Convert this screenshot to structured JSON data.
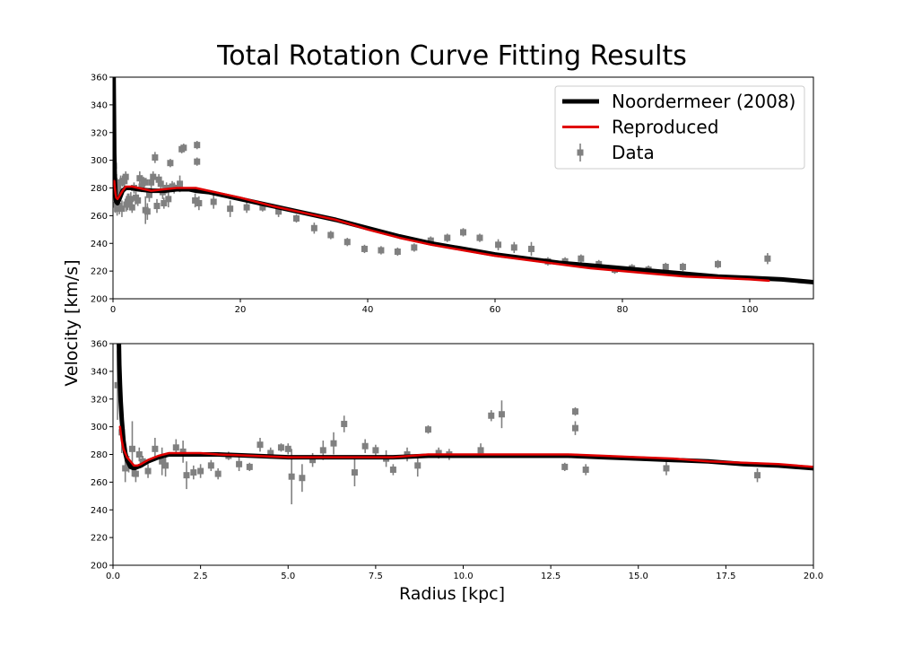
{
  "figure": {
    "title": "Total Rotation Curve Fitting Results",
    "xlabel": "Radius [kpc]",
    "ylabel": "Velocity [km/s]"
  },
  "legend": {
    "placement": "upper-right",
    "items": [
      {
        "label": "Noordermeer (2008)",
        "kind": "line",
        "color": "#000000"
      },
      {
        "label": "Reproduced",
        "kind": "line",
        "color": "#e00000"
      },
      {
        "label": "Data",
        "kind": "errorbar",
        "color": "#808080"
      }
    ]
  },
  "colors": {
    "noordermeer": "#000000",
    "reproduced": "#e00000",
    "data": "#808080"
  },
  "chart_data": [
    {
      "type": "line",
      "panel": "top",
      "xlim": [
        0,
        110
      ],
      "ylim": [
        200,
        360
      ],
      "xticks": [
        0,
        20,
        40,
        60,
        80,
        100
      ],
      "yticks": [
        200,
        220,
        240,
        260,
        280,
        300,
        320,
        340,
        360
      ],
      "xtick_labels": [
        "0",
        "20",
        "40",
        "60",
        "80",
        "100"
      ],
      "ytick_labels": [
        "200",
        "220",
        "240",
        "260",
        "280",
        "300",
        "320",
        "340",
        "360"
      ],
      "grid": false,
      "series": [
        {
          "name": "Noordermeer (2008)",
          "type": "line",
          "color": "#000000",
          "x": [
            0.05,
            0.1,
            0.15,
            0.2,
            0.3,
            0.4,
            0.5,
            0.7,
            1,
            1.5,
            2,
            3,
            4,
            6,
            8,
            10,
            12,
            13,
            15,
            20,
            25,
            30,
            35,
            40,
            45,
            50,
            55,
            60,
            65,
            70,
            75,
            80,
            85,
            90,
            95,
            100,
            105,
            110
          ],
          "y": [
            430,
            360,
            330,
            305,
            285,
            275,
            270,
            269,
            272,
            278,
            280,
            280,
            279,
            278,
            278,
            279,
            279,
            278,
            277,
            272,
            267,
            262,
            257,
            251,
            245,
            240,
            236,
            232,
            229,
            226,
            224,
            222,
            220,
            218,
            216,
            215,
            214,
            212
          ]
        },
        {
          "name": "Reproduced",
          "type": "line",
          "color": "#e00000",
          "x": [
            0.2,
            0.3,
            0.4,
            0.5,
            0.7,
            1,
            1.5,
            2,
            3,
            4,
            6,
            8,
            10,
            12,
            13,
            15,
            20,
            25,
            30,
            35,
            40,
            45,
            50,
            55,
            60,
            65,
            70,
            75,
            80,
            85,
            90,
            95,
            100,
            103
          ],
          "y": [
            285,
            280,
            276,
            273,
            272,
            274,
            278,
            281,
            281,
            280,
            278,
            279,
            280,
            280,
            280,
            278,
            273,
            267,
            262,
            257,
            250,
            244,
            239,
            235,
            231,
            228,
            225,
            222,
            220,
            218,
            216,
            215,
            214,
            213
          ]
        },
        {
          "name": "Data",
          "type": "scatter",
          "color": "#808080",
          "x": [
            0.13,
            0.25,
            0.35,
            0.45,
            0.55,
            0.65,
            0.75,
            0.85,
            1.0,
            1.2,
            1.4,
            1.5,
            1.8,
            2.0,
            2.1,
            2.3,
            2.5,
            2.8,
            3.0,
            3.3,
            3.6,
            3.9,
            4.2,
            4.5,
            4.8,
            5.0,
            5.1,
            5.4,
            5.7,
            6.0,
            6.3,
            6.6,
            6.9,
            7.2,
            7.5,
            7.8,
            8.0,
            8.4,
            8.7,
            9.0,
            9.3,
            9.6,
            10.5,
            10.8,
            11.1,
            12.9,
            13.2,
            13.2,
            13.5,
            15.8,
            18.4,
            21.0,
            23.5,
            26.0,
            28.8,
            31.6,
            34.2,
            36.8,
            39.5,
            42.1,
            44.7,
            47.3,
            49.9,
            52.5,
            55.0,
            57.6,
            60.5,
            63.0,
            65.7,
            68.3,
            71.0,
            73.5,
            76.3,
            78.8,
            81.5,
            84.1,
            86.8,
            89.5,
            95.0,
            102.8
          ],
          "y": [
            296,
            285,
            268,
            273,
            283,
            265,
            280,
            278,
            267,
            284,
            265,
            285,
            285,
            288,
            268,
            270,
            272,
            272,
            266,
            280,
            273,
            271,
            287,
            281,
            285,
            284,
            264,
            263,
            275,
            284,
            288,
            302,
            267,
            286,
            283,
            277,
            269,
            280,
            272,
            298,
            281,
            280,
            283,
            308,
            309,
            271,
            311,
            299,
            269,
            270,
            265,
            266,
            266,
            263,
            258,
            251,
            246,
            241,
            236,
            235,
            234,
            237,
            242,
            244,
            248,
            244,
            239,
            237,
            236,
            227,
            227,
            229,
            225,
            221,
            222,
            221,
            223,
            223,
            225,
            229
          ],
          "yerr": [
            4,
            5,
            6,
            5,
            7,
            5,
            6,
            4,
            6,
            5,
            6,
            4,
            5,
            4,
            5,
            6,
            4,
            5,
            4,
            4,
            5,
            4,
            5,
            4,
            3,
            3,
            10,
            6,
            5,
            5,
            4,
            4,
            5,
            4,
            4,
            5,
            4,
            4,
            6,
            3,
            4,
            4,
            6,
            3,
            3,
            5,
            3,
            3,
            5,
            5,
            6,
            4,
            3,
            4,
            3,
            4,
            3,
            3,
            3,
            3,
            3,
            3,
            3,
            3,
            3,
            3,
            4,
            4,
            5,
            3,
            3,
            3,
            3,
            3,
            3,
            3,
            3,
            3,
            3,
            4
          ]
        }
      ]
    },
    {
      "type": "line",
      "panel": "bottom",
      "xlim": [
        0,
        20
      ],
      "ylim": [
        200,
        360
      ],
      "xticks": [
        0,
        2.5,
        5,
        7.5,
        10,
        12.5,
        15,
        17.5,
        20
      ],
      "yticks": [
        200,
        220,
        240,
        260,
        280,
        300,
        320,
        340,
        360
      ],
      "xtick_labels": [
        "0.0",
        "2.5",
        "5.0",
        "7.5",
        "10.0",
        "12.5",
        "15.0",
        "17.5",
        "20.0"
      ],
      "ytick_labels": [
        "200",
        "220",
        "240",
        "260",
        "280",
        "300",
        "320",
        "340",
        "360"
      ],
      "grid": false,
      "series": [
        {
          "name": "Noordermeer (2008)",
          "type": "line",
          "color": "#000000",
          "x": [
            0.17,
            0.18,
            0.2,
            0.22,
            0.25,
            0.3,
            0.35,
            0.4,
            0.5,
            0.6,
            0.7,
            0.8,
            1.0,
            1.3,
            1.6,
            2.0,
            2.5,
            3.0,
            4.0,
            5.0,
            6.0,
            7.0,
            8.0,
            9.0,
            10.0,
            11.0,
            12.0,
            13.0,
            14.0,
            15.0,
            16.0,
            17.0,
            18.0,
            19.0,
            20.0
          ],
          "y": [
            360,
            345,
            330,
            318,
            305,
            290,
            281,
            276,
            271,
            270,
            271,
            272,
            275,
            278,
            280,
            280,
            280,
            280,
            279,
            278,
            278,
            278,
            278,
            279,
            279,
            279,
            279,
            279,
            278,
            277,
            276,
            275,
            273,
            272,
            270
          ]
        },
        {
          "name": "Reproduced",
          "type": "line",
          "color": "#e00000",
          "x": [
            0.2,
            0.25,
            0.3,
            0.35,
            0.4,
            0.5,
            0.6,
            0.7,
            0.8,
            1.0,
            1.3,
            1.6,
            2.0,
            2.5,
            3.0,
            4.0,
            5.0,
            6.0,
            7.0,
            8.0,
            9.0,
            10.0,
            11.0,
            12.0,
            13.0,
            14.0,
            15.0,
            16.0,
            17.0,
            18.0,
            19.0,
            20.0
          ],
          "y": [
            300,
            290,
            284,
            281,
            278,
            275,
            272,
            272,
            273,
            276,
            279,
            281,
            281,
            281,
            280,
            279,
            278,
            278,
            278,
            278,
            280,
            280,
            280,
            280,
            280,
            279,
            278,
            277,
            275,
            274,
            273,
            271
          ]
        },
        {
          "name": "Data",
          "type": "scatter",
          "color": "#808080",
          "x": [
            0.13,
            0.25,
            0.35,
            0.45,
            0.55,
            0.65,
            0.75,
            0.85,
            1.0,
            1.2,
            1.4,
            1.5,
            1.8,
            2.0,
            2.1,
            2.3,
            2.5,
            2.8,
            3.0,
            3.3,
            3.6,
            3.9,
            4.2,
            4.5,
            4.8,
            5.0,
            5.1,
            5.4,
            5.7,
            6.0,
            6.3,
            6.6,
            6.9,
            7.2,
            7.5,
            7.8,
            8.0,
            8.4,
            8.7,
            9.0,
            9.3,
            9.6,
            10.5,
            10.8,
            11.1,
            12.9,
            13.2,
            13.2,
            13.5,
            15.8,
            18.4
          ],
          "y": [
            330,
            296,
            270,
            273,
            284,
            266,
            280,
            275,
            268,
            284,
            275,
            272,
            285,
            282,
            265,
            267,
            268,
            272,
            266,
            279,
            273,
            271,
            287,
            281,
            285,
            284,
            264,
            263,
            276,
            283,
            288,
            302,
            267,
            286,
            283,
            277,
            269,
            280,
            272,
            298,
            281,
            280,
            283,
            308,
            309,
            271,
            311,
            299,
            269,
            270,
            265
          ],
          "yerr": [
            25,
            15,
            10,
            6,
            20,
            6,
            5,
            4,
            5,
            8,
            10,
            8,
            6,
            8,
            10,
            5,
            5,
            4,
            4,
            3,
            5,
            3,
            5,
            4,
            3,
            4,
            20,
            10,
            5,
            7,
            8,
            6,
            10,
            5,
            4,
            6,
            4,
            5,
            8,
            3,
            4,
            4,
            5,
            4,
            10,
            3,
            3,
            5,
            4,
            5,
            5
          ],
          "_note": null
        }
      ]
    }
  ]
}
